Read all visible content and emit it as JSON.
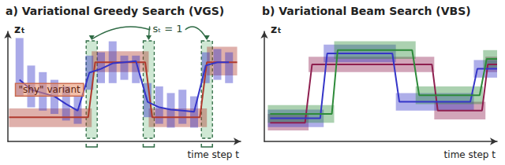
{
  "chart_data": [
    {
      "type": "line",
      "title": "a) Variational Greedy Search (VGS)",
      "xlabel": "time step t",
      "ylabel": "zₜ",
      "xlim": [
        0,
        20
      ],
      "ylim": [
        0,
        10
      ],
      "tick_labels": false,
      "grid": false,
      "switches": {
        "label": "sₜ = 1",
        "t": [
          7.2,
          12.1,
          17.1
        ]
      },
      "series": [
        {
          "name": "\"shy\" variant",
          "color": "#b03a2e",
          "x": [
            0.1,
            6.9,
            7.5,
            11.8,
            12.4,
            16.5,
            17.1,
            19.7
          ],
          "values": [
            2.2,
            2.2,
            7.2,
            7.2,
            2.2,
            2.2,
            7.2,
            7.2
          ],
          "bands": [
            [
              0.1,
              7.2,
              1.3,
              3.0
            ],
            [
              7.2,
              12.1,
              6.3,
              8.2
            ],
            [
              12.1,
              17.1,
              1.3,
              3.0
            ],
            [
              17.1,
              19.7,
              6.0,
              8.6
            ]
          ]
        },
        {
          "color": "#3434c8",
          "x": [
            1,
            2,
            3,
            4,
            5,
            6,
            7,
            8,
            9,
            10,
            11,
            12,
            13,
            14,
            15,
            16,
            17,
            18,
            19
          ],
          "values": [
            5.6,
            4.7,
            4.4,
            4.1,
            3.4,
            2.8,
            6.25,
            6.6,
            7.1,
            7.2,
            7.3,
            3.6,
            3.1,
            2.9,
            2.8,
            2.7,
            6.9,
            7.2,
            7.2
          ],
          "lower": [
            4.1,
            3.1,
            2.8,
            2.5,
            1.9,
            1.6,
            4.7,
            5.3,
            5.3,
            5.6,
            5.3,
            2.2,
            1.6,
            1.25,
            1.6,
            1.25,
            5.3,
            5.6,
            5.3
          ],
          "upper": [
            9.4,
            6.9,
            6.3,
            5.6,
            5.0,
            4.1,
            7.8,
            8.1,
            9.1,
            7.8,
            7.8,
            5.3,
            5.0,
            4.4,
            4.7,
            4.1,
            8.1,
            8.4,
            8.1
          ]
        }
      ]
    },
    {
      "type": "line",
      "title": "b) Variational Beam Search (VBS)",
      "xlabel": "time step t",
      "ylabel": "zₜ",
      "xlim": [
        0,
        20
      ],
      "ylim": [
        0,
        10
      ],
      "tick_labels": false,
      "grid": false,
      "series": [
        {
          "color": "#8e1f4f",
          "x": [
            0.5,
            3.5,
            4.1,
            14.4,
            14.9,
            18.7,
            19.2,
            20
          ],
          "values": [
            1.7,
            1.7,
            7.0,
            7.0,
            2.8,
            2.8,
            7.0,
            7.0
          ],
          "bands": [
            [
              0.3,
              3.8,
              1.0,
              2.5
            ],
            [
              3.8,
              14.6,
              6.3,
              7.7
            ],
            [
              14.6,
              19.0,
              2.0,
              3.6
            ],
            [
              19.0,
              20,
              6.3,
              7.7
            ]
          ]
        },
        {
          "color": "#3535c8",
          "x": [
            0.5,
            4.8,
            5.4,
            11.0,
            11.6,
            17.7,
            18.3,
            20
          ],
          "values": [
            2.1,
            2.1,
            8.0,
            8.0,
            3.6,
            3.6,
            6.6,
            6.6
          ],
          "bands": [
            [
              0.3,
              5.1,
              1.3,
              2.9
            ],
            [
              5.1,
              11.3,
              7.2,
              8.8
            ],
            [
              11.3,
              18.0,
              2.8,
              4.4
            ],
            [
              18.0,
              20,
              5.8,
              7.4
            ]
          ]
        },
        {
          "color": "#2e8b3a",
          "x": [
            0.5,
            5.8,
            6.3,
            12.7,
            13.3,
            18.5,
            19.1,
            20
          ],
          "values": [
            2.5,
            2.5,
            8.3,
            8.3,
            4.2,
            4.2,
            7.5,
            7.5
          ],
          "bands": [
            [
              0.3,
              6.0,
              1.7,
              3.3
            ],
            [
              6.0,
              13.0,
              7.5,
              9.1
            ],
            [
              13.0,
              18.8,
              3.4,
              5.0
            ],
            [
              18.8,
              20,
              6.7,
              8.3
            ]
          ]
        }
      ]
    }
  ]
}
